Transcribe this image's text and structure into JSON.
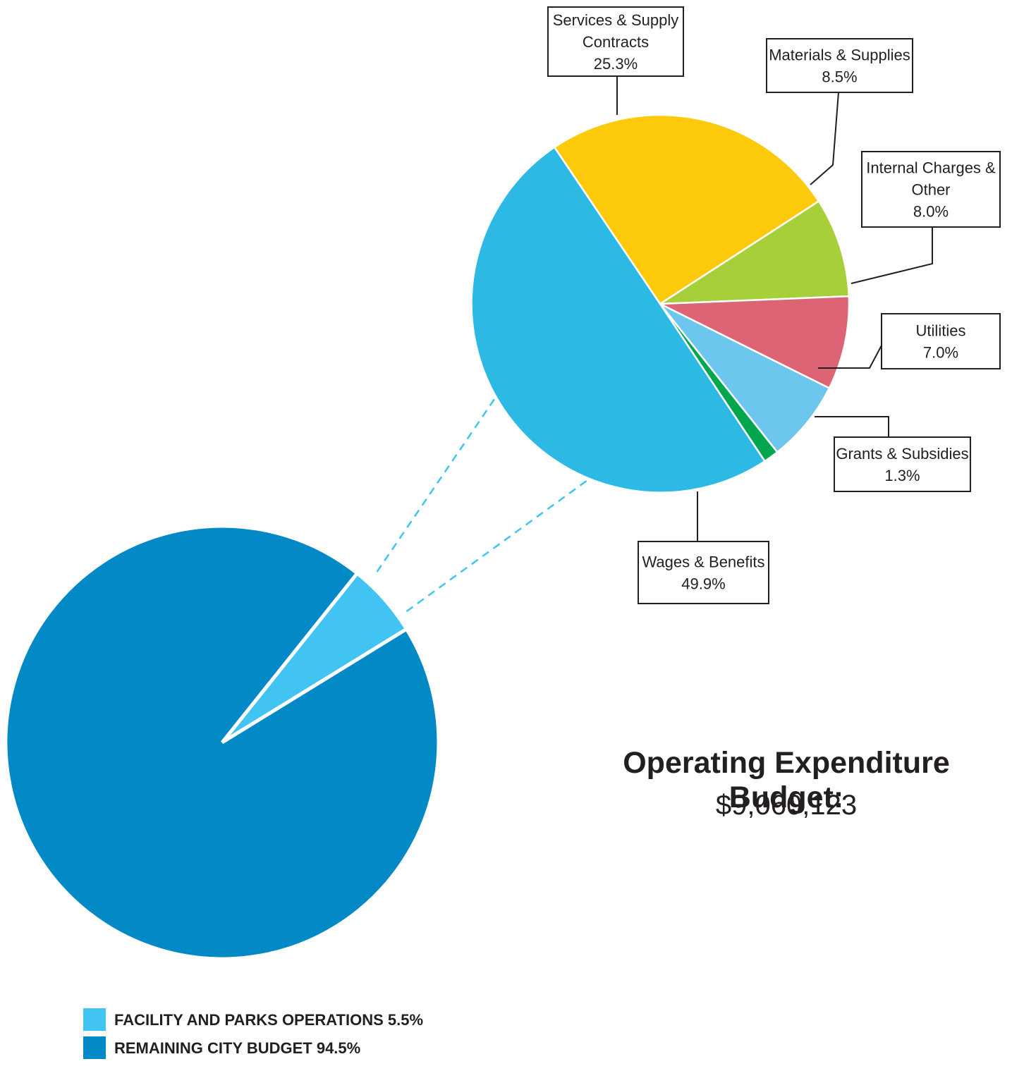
{
  "summary": {
    "title": "Operating Expenditure Budget:",
    "total": "$9,060,123"
  },
  "chart_data": [
    {
      "type": "pie",
      "slices": [
        {
          "label": "FACILITY AND PARKS OPERATIONS",
          "value_label": "5.5%",
          "value": 5.5,
          "color": "#41c4f2"
        },
        {
          "label": "REMAINING CITY BUDGET",
          "value_label": "94.5%",
          "value": 94.5,
          "color": "#0289c6"
        }
      ],
      "legend": {
        "placement": "bottom-left"
      }
    },
    {
      "type": "pie",
      "slices": [
        {
          "lines": [
            "Services & Supply",
            "Contracts"
          ],
          "value_label": "25.3%",
          "value": 25.3,
          "color": "#fdca0b"
        },
        {
          "lines": [
            "Materials & Supplies"
          ],
          "value_label": "8.5%",
          "value": 8.5,
          "color": "#a7cf3a"
        },
        {
          "lines": [
            "Internal Charges &",
            "Other"
          ],
          "value_label": "8.0%",
          "value": 8.0,
          "color": "#dd6474"
        },
        {
          "lines": [
            "Utilities"
          ],
          "value_label": "7.0%",
          "value": 7.0,
          "color": "#6dc6ee"
        },
        {
          "lines": [
            "Grants & Subsidies"
          ],
          "value_label": "1.3%",
          "value": 1.3,
          "color": "#01a64f"
        },
        {
          "lines": [
            "Wages & Benefits"
          ],
          "value_label": "49.9%",
          "value": 49.9,
          "color": "#2cbae5"
        }
      ]
    }
  ]
}
